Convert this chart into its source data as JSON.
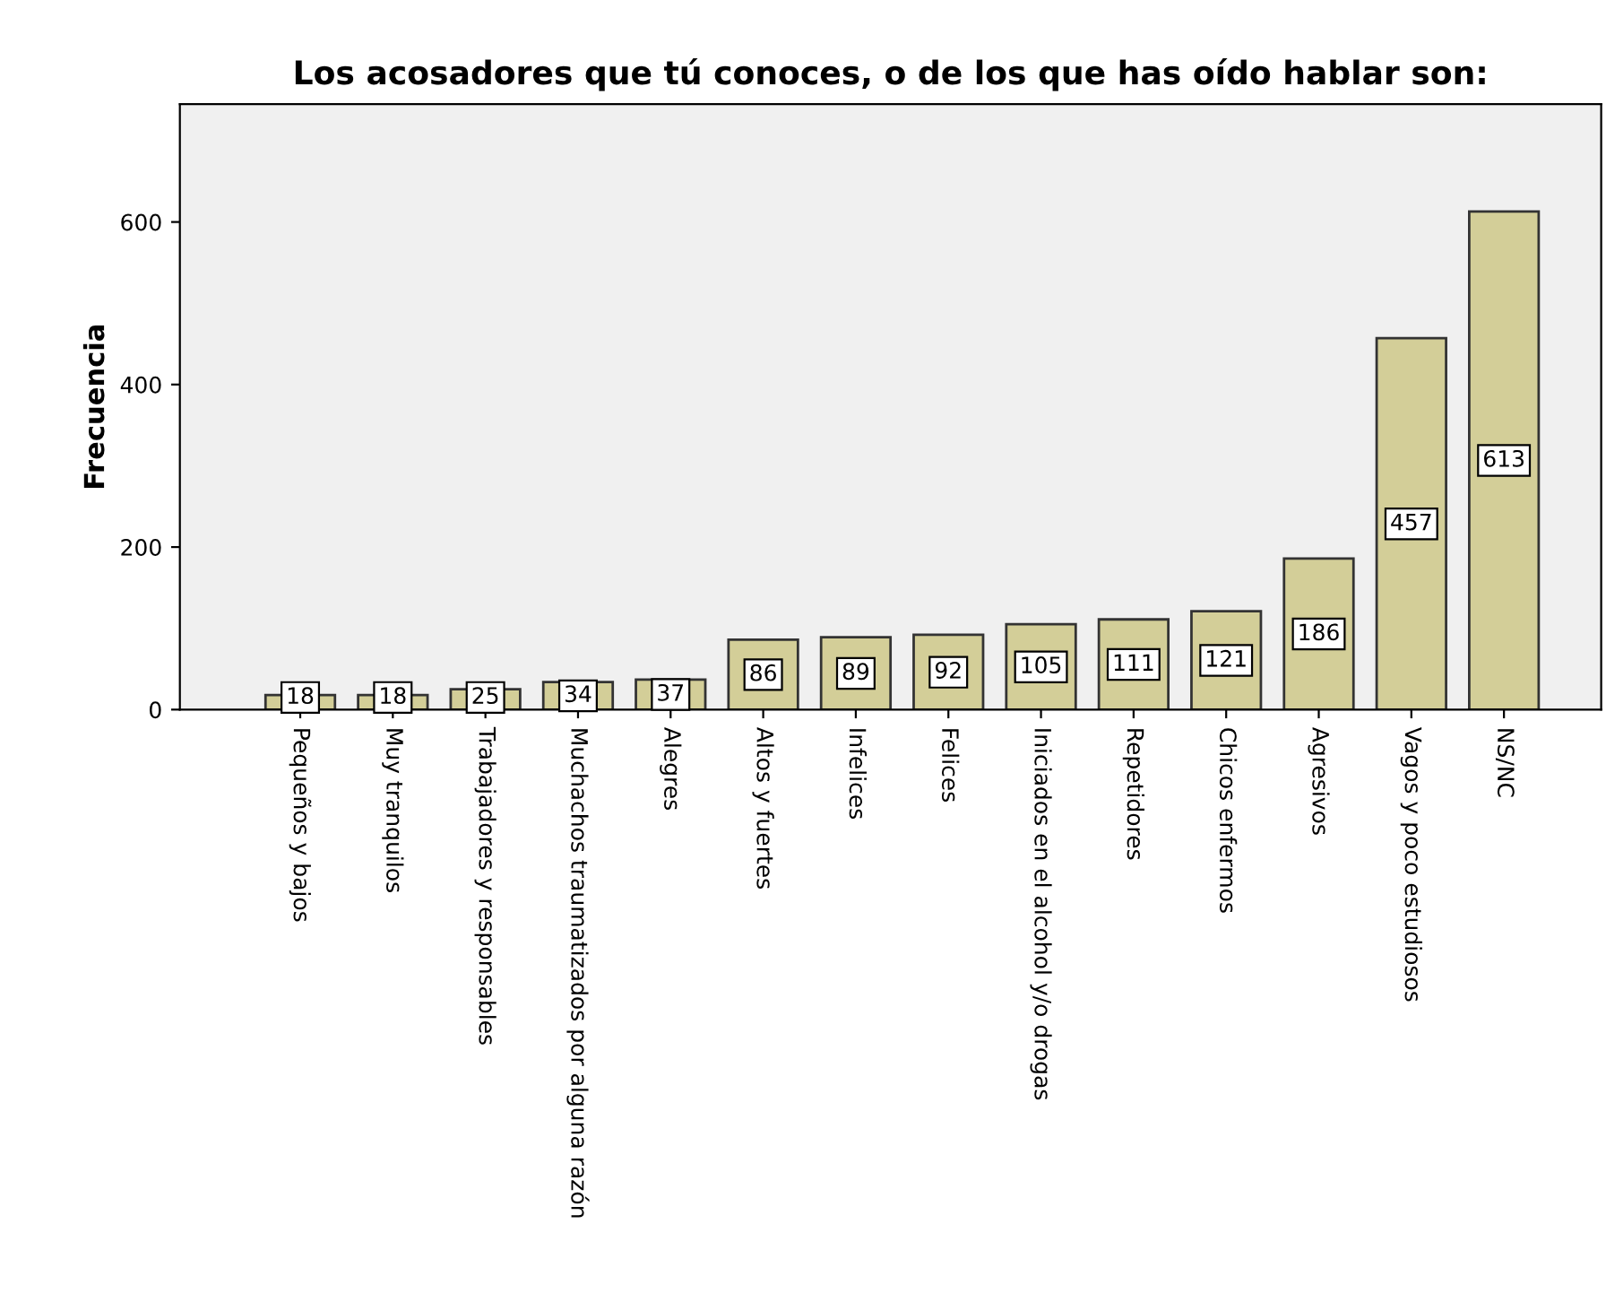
{
  "chart_data": {
    "type": "bar",
    "title": "Los acosadores que tú conoces, o de los que has oído hablar son:",
    "ylabel": "Frecuencia",
    "categories": [
      "Pequeños y bajos",
      "Muy tranquilos",
      "Trabajadores y responsables",
      "Muchachos traumatizados por alguna razón",
      "Alegres",
      "Altos y fuertes",
      "Infelices",
      "Felices",
      "Iniciados en el alcohol y/o drogas",
      "Repetidores",
      "Chicos enfermos",
      "Agresivos",
      "Vagos y poco estudiosos",
      "NS/NC"
    ],
    "values": [
      18,
      18,
      25,
      34,
      37,
      86,
      89,
      92,
      105,
      111,
      121,
      186,
      457,
      613
    ],
    "color": "#d3ce98",
    "ylim": [
      0,
      745
    ],
    "yticks": [
      0,
      200,
      400,
      600
    ],
    "data_labels": true,
    "grid": false,
    "legend": false
  }
}
